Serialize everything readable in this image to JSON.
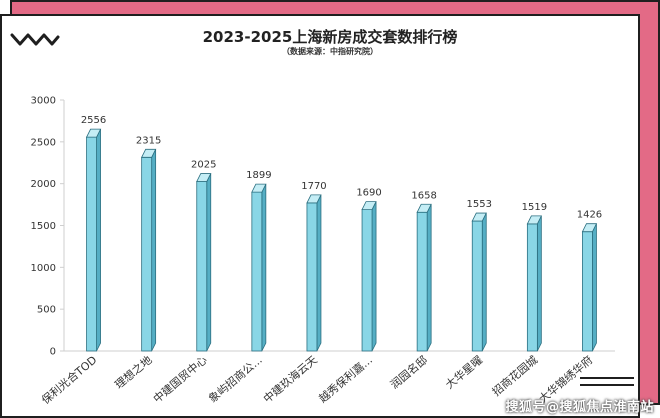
{
  "chart_data": {
    "type": "bar",
    "title": "2023-2025上海新房成交套数排行榜",
    "subtitle": "（数据来源：中指研究院）",
    "categories": [
      "保利光合TOD",
      "理想之地",
      "中建国贸中心",
      "象屿招商公...",
      "中建玖海云天",
      "越秀保利嘉...",
      "润园名邸",
      "大华星曜",
      "招商花园城",
      "大华锦绣华府"
    ],
    "values": [
      2556,
      2315,
      2025,
      1899,
      1770,
      1690,
      1658,
      1553,
      1519,
      1426
    ],
    "xlabel": "",
    "ylabel": "",
    "ylim": [
      0,
      3000
    ],
    "yticks": [
      0,
      500,
      1000,
      1500,
      2000,
      2500,
      3000
    ],
    "grid": false,
    "legend": "none",
    "bar_color": "#89d6e6",
    "bar_side_color": "#55aec4",
    "bar_top_color": "#c4edf5"
  },
  "watermark": "搜狐号@搜狐焦点淮南站",
  "colors": {
    "frame": "#e36a86",
    "outline": "#1f1f1f"
  }
}
